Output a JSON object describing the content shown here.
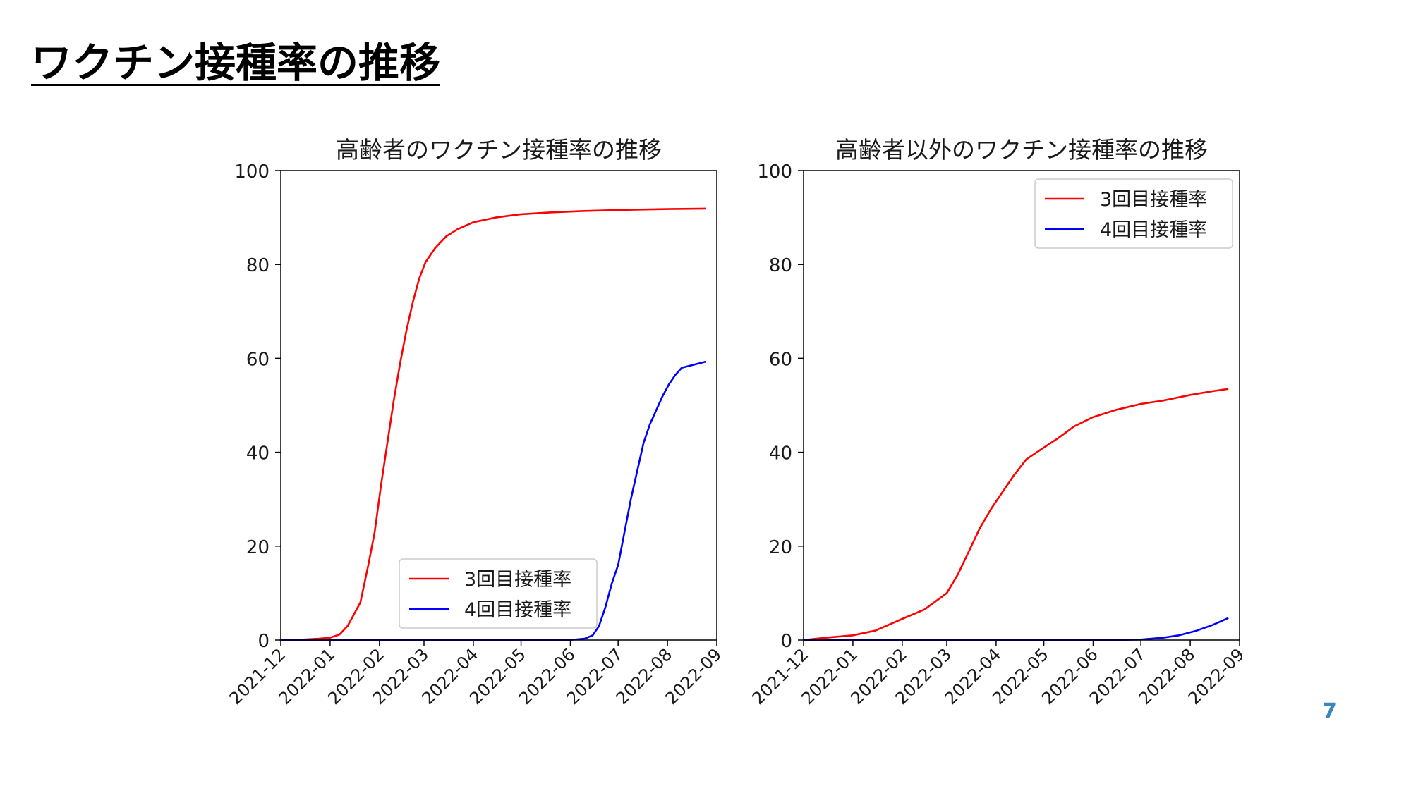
{
  "slide": {
    "title": "ワクチン接種率の推移",
    "page_number": "7"
  },
  "chart_data": [
    {
      "type": "line",
      "title": "高齢者のワクチン接種率の推移",
      "xlabel": "",
      "ylabel": "",
      "xlim": [
        "2021-12-01",
        "2022-09-01"
      ],
      "ylim": [
        0,
        100
      ],
      "x_ticks": [
        "2021-12",
        "2022-01",
        "2022-02",
        "2022-03",
        "2022-04",
        "2022-05",
        "2022-06",
        "2022-07",
        "2022-08",
        "2022-09"
      ],
      "y_ticks": [
        "0",
        "20",
        "40",
        "60",
        "80",
        "100"
      ],
      "grid": false,
      "legend_position": "bottom-center",
      "series": [
        {
          "name": "3回目接種率",
          "color": "#ff0000",
          "points": [
            [
              "2021-12-01",
              0
            ],
            [
              "2021-12-15",
              0.1
            ],
            [
              "2021-12-25",
              0.3
            ],
            [
              "2022-01-01",
              0.5
            ],
            [
              "2022-01-07",
              1.2
            ],
            [
              "2022-01-12",
              3
            ],
            [
              "2022-01-16",
              5.5
            ],
            [
              "2022-01-20",
              8
            ],
            [
              "2022-01-25",
              16
            ],
            [
              "2022-01-29",
              23
            ],
            [
              "2022-02-02",
              33
            ],
            [
              "2022-02-06",
              42
            ],
            [
              "2022-02-10",
              51
            ],
            [
              "2022-02-14",
              59
            ],
            [
              "2022-02-18",
              66
            ],
            [
              "2022-02-22",
              72
            ],
            [
              "2022-02-26",
              77
            ],
            [
              "2022-03-02",
              80.5
            ],
            [
              "2022-03-08",
              83.5
            ],
            [
              "2022-03-15",
              86
            ],
            [
              "2022-03-22",
              87.5
            ],
            [
              "2022-04-01",
              89
            ],
            [
              "2022-04-15",
              90
            ],
            [
              "2022-05-01",
              90.7
            ],
            [
              "2022-05-20",
              91.1
            ],
            [
              "2022-06-10",
              91.4
            ],
            [
              "2022-07-01",
              91.6
            ],
            [
              "2022-08-01",
              91.8
            ],
            [
              "2022-08-25",
              91.9
            ]
          ]
        },
        {
          "name": "4回目接種率",
          "color": "#0000ff",
          "points": [
            [
              "2021-12-01",
              0
            ],
            [
              "2022-05-31",
              0
            ],
            [
              "2022-06-10",
              0.3
            ],
            [
              "2022-06-15",
              1
            ],
            [
              "2022-06-19",
              3
            ],
            [
              "2022-06-23",
              7
            ],
            [
              "2022-06-27",
              12
            ],
            [
              "2022-07-01",
              16
            ],
            [
              "2022-07-05",
              23
            ],
            [
              "2022-07-09",
              30
            ],
            [
              "2022-07-13",
              36
            ],
            [
              "2022-07-17",
              42
            ],
            [
              "2022-07-21",
              46
            ],
            [
              "2022-07-25",
              49
            ],
            [
              "2022-07-29",
              52
            ],
            [
              "2022-08-02",
              54.5
            ],
            [
              "2022-08-06",
              56.5
            ],
            [
              "2022-08-10",
              58
            ],
            [
              "2022-08-25",
              59.3
            ]
          ]
        }
      ]
    },
    {
      "type": "line",
      "title": "高齢者以外のワクチン接種率の推移",
      "xlabel": "",
      "ylabel": "",
      "xlim": [
        "2021-12-01",
        "2022-09-01"
      ],
      "ylim": [
        0,
        100
      ],
      "x_ticks": [
        "2021-12",
        "2022-01",
        "2022-02",
        "2022-03",
        "2022-04",
        "2022-05",
        "2022-06",
        "2022-07",
        "2022-08",
        "2022-09"
      ],
      "y_ticks": [
        "0",
        "20",
        "40",
        "60",
        "80",
        "100"
      ],
      "grid": false,
      "legend_position": "top-right",
      "series": [
        {
          "name": "3回目接種率",
          "color": "#ff0000",
          "points": [
            [
              "2021-12-01",
              0
            ],
            [
              "2021-12-15",
              0.5
            ],
            [
              "2022-01-01",
              1
            ],
            [
              "2022-01-15",
              2
            ],
            [
              "2022-02-01",
              4.5
            ],
            [
              "2022-02-15",
              6.5
            ],
            [
              "2022-03-01",
              10
            ],
            [
              "2022-03-08",
              14
            ],
            [
              "2022-03-15",
              19
            ],
            [
              "2022-03-22",
              24
            ],
            [
              "2022-03-29",
              28
            ],
            [
              "2022-04-05",
              31.5
            ],
            [
              "2022-04-12",
              35
            ],
            [
              "2022-04-20",
              38.5
            ],
            [
              "2022-05-01",
              41
            ],
            [
              "2022-05-10",
              43
            ],
            [
              "2022-05-20",
              45.5
            ],
            [
              "2022-06-01",
              47.5
            ],
            [
              "2022-06-15",
              49
            ],
            [
              "2022-07-01",
              50.3
            ],
            [
              "2022-07-15",
              51
            ],
            [
              "2022-08-01",
              52.2
            ],
            [
              "2022-08-15",
              53
            ],
            [
              "2022-08-25",
              53.5
            ]
          ]
        },
        {
          "name": "4回目接種率",
          "color": "#0000ff",
          "points": [
            [
              "2021-12-01",
              0
            ],
            [
              "2022-06-15",
              0
            ],
            [
              "2022-07-01",
              0.1
            ],
            [
              "2022-07-15",
              0.5
            ],
            [
              "2022-07-25",
              1
            ],
            [
              "2022-08-05",
              2
            ],
            [
              "2022-08-15",
              3.2
            ],
            [
              "2022-08-25",
              4.7
            ]
          ]
        }
      ]
    }
  ]
}
